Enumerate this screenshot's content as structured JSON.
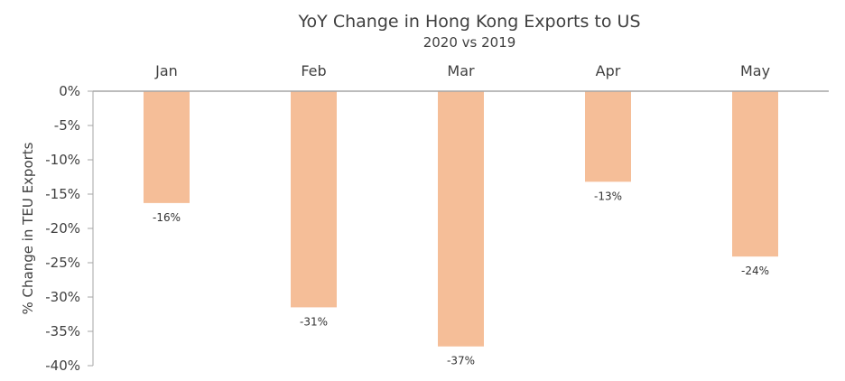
{
  "chart_data": {
    "type": "bar",
    "title": "YoY Change in Hong Kong Exports to US",
    "subtitle": "2020 vs 2019",
    "ylabel": "% Change in TEU Exports",
    "categories": [
      "Jan",
      "Feb",
      "Mar",
      "Apr",
      "May"
    ],
    "values": [
      -16.3,
      -31.5,
      -37.2,
      -13.2,
      -24.1
    ],
    "data_labels": [
      "-16%",
      "-31%",
      "-37%",
      "-13%",
      "-24%"
    ],
    "yticks": [
      0,
      -5,
      -10,
      -15,
      -20,
      -25,
      -30,
      -35,
      -40
    ],
    "ytick_labels": [
      "0%",
      "-5%",
      "-10%",
      "-15%",
      "-20%",
      "-25%",
      "-30%",
      "-35%",
      "-40%"
    ],
    "ylim": [
      -40,
      0
    ],
    "category_axis_position": "top",
    "grid": false,
    "bar_color": "#F5BE98"
  }
}
